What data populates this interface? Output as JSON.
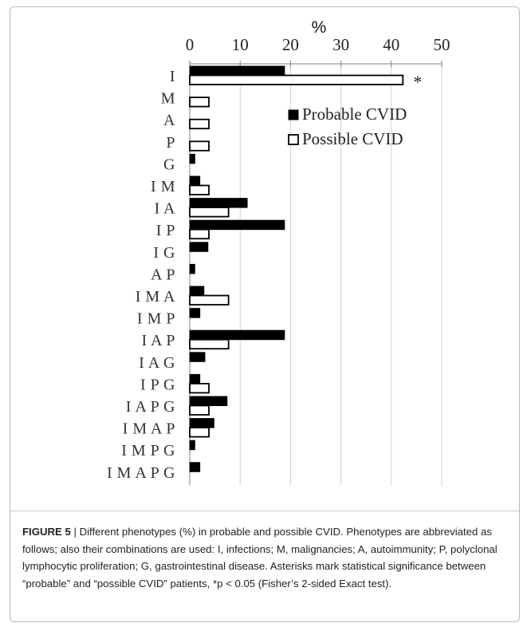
{
  "chart_data": {
    "type": "bar",
    "orientation": "horizontal",
    "title": "",
    "xlabel": "%",
    "ylabel": "",
    "xlim": [
      0,
      50
    ],
    "x_ticks": [
      0,
      10,
      20,
      30,
      40,
      50
    ],
    "categories": [
      "I",
      "M",
      "A",
      "P",
      "G",
      "I M",
      "I A",
      "I P",
      "I G",
      "A P",
      "I M A",
      "I M P",
      "I A P",
      "I A G",
      "I P G",
      "I A P G",
      "I M A P",
      "I M P G",
      "I M A P G"
    ],
    "series": [
      {
        "name": "Probable CVID",
        "color": "#000000",
        "fill": "filled",
        "values": [
          18.8,
          0,
          0,
          0,
          1.0,
          2.0,
          11.4,
          18.8,
          3.6,
          1.0,
          2.8,
          2.0,
          18.8,
          3.0,
          2.0,
          7.4,
          4.8,
          1.0,
          2.0
        ]
      },
      {
        "name": "Possible CVID",
        "color": "#000000",
        "fill": "hollow",
        "values": [
          42.3,
          3.8,
          3.8,
          3.8,
          0,
          3.8,
          7.7,
          3.8,
          0,
          0,
          7.7,
          0,
          7.7,
          0,
          3.8,
          3.8,
          3.8,
          0,
          0
        ]
      }
    ],
    "annotations": [
      {
        "category": "I",
        "series": "Possible CVID",
        "text": "*"
      }
    ],
    "legend_position": "right",
    "grid": true
  },
  "caption": {
    "label": "FIGURE 5",
    "separator": " | ",
    "text": "Different phenotypes (%) in probable and possible CVID. Phenotypes are abbreviated as follows; also their combinations are used: I, infections; M, malignancies; A, autoimmunity; P, polyclonal lymphocytic proliferation; G, gastrointestinal disease. Asterisks mark statistical significance between “probable” and “possible CVID” patients, *p < 0.05 (Fisher’s 2-sided Exact test)."
  }
}
